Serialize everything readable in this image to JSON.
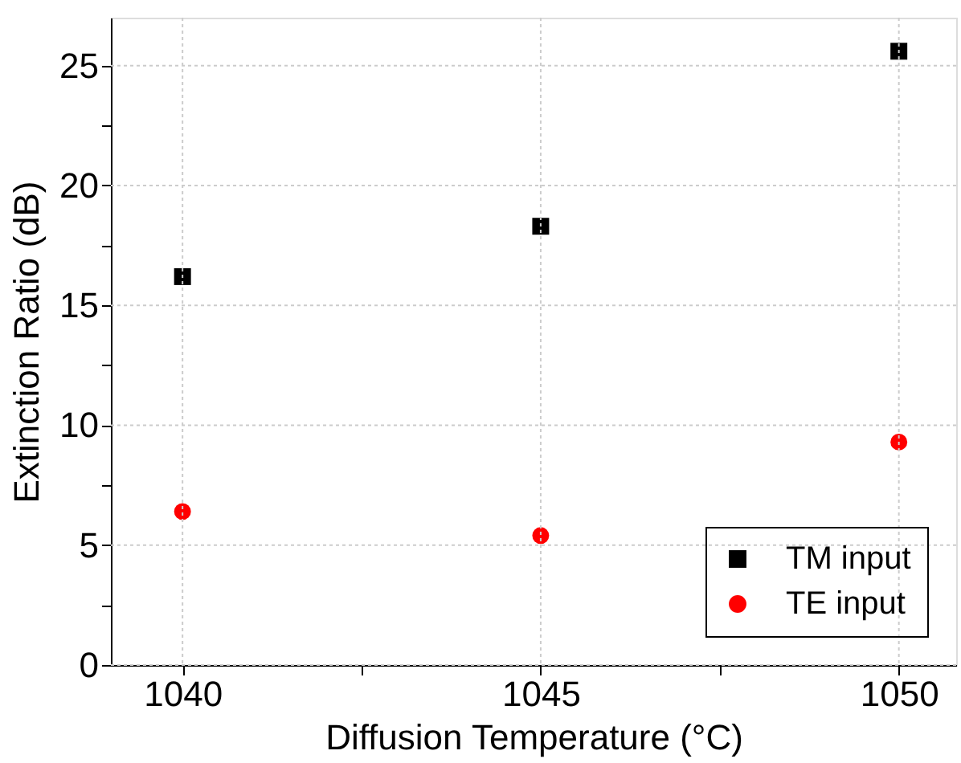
{
  "chart_data": {
    "type": "scatter",
    "xlabel": "Diffusion Temperature (°C)",
    "ylabel": "Extinction Ratio (dB)",
    "x": [
      1040,
      1045,
      1050
    ],
    "series": [
      {
        "name": "TM input",
        "color": "#000000",
        "marker": "square",
        "values": [
          16.2,
          18.3,
          25.6
        ]
      },
      {
        "name": "TE input",
        "color": "#ff0000",
        "marker": "circle",
        "values": [
          6.4,
          5.4,
          9.3
        ]
      }
    ],
    "xlim": [
      1039,
      1050.8
    ],
    "ylim": [
      0,
      27
    ],
    "xticks": [
      1040,
      {
        "value": 1042.5,
        "label": null
      },
      1045,
      {
        "value": 1047.5,
        "label": null
      },
      1050
    ],
    "yticks": [
      0,
      {
        "value": 2.5,
        "label": null
      },
      5,
      {
        "value": 7.5,
        "label": null
      },
      10,
      {
        "value": 12.5,
        "label": null
      },
      15,
      {
        "value": 17.5,
        "label": null
      },
      20,
      {
        "value": 22.5,
        "label": null
      },
      25
    ],
    "grid": true,
    "legend": "bottom right"
  }
}
